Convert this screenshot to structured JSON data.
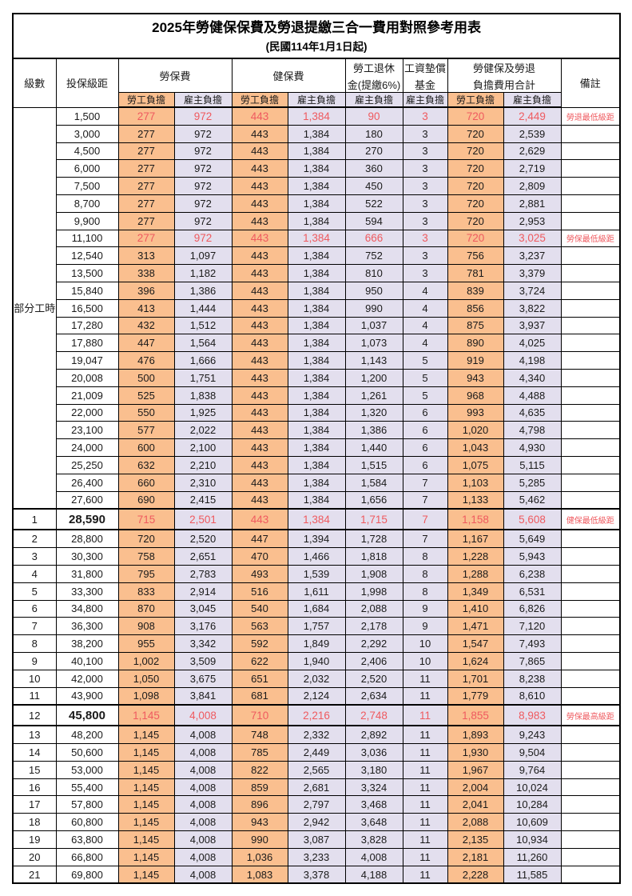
{
  "page": {
    "title": "2025年勞健保保費及勞退提繳三合一費用對照參考用表",
    "subtitle": "(民國114年1月1日起)"
  },
  "colors": {
    "employee_bg": "#fabf8f",
    "employer_bg": "#e3dfee",
    "highlight_red": "#ef5a5f"
  },
  "header": {
    "level": "級數",
    "bracket": "投保級距",
    "labor_fee": "勞保費",
    "health_fee": "健保費",
    "pension_line1": "勞工退休",
    "pension_line2": "金(提繳6%)",
    "wage_fund_line1": "工資墊償",
    "wage_fund_line2": "基金",
    "total_line1": "勞健保及勞退",
    "total_line2": "負擔費用合計",
    "remark": "備註",
    "employee_share": "勞工負擔",
    "employer_share": "雇主負擔"
  },
  "part_time_label": "部分工時",
  "part_time_row_span": 23,
  "rows": [
    {
      "level": "",
      "bracket": "1,500",
      "values": [
        "277",
        "972",
        "443",
        "1,384",
        "90",
        "3",
        "720",
        "2,449"
      ],
      "remark": "勞退最低級距",
      "red": true
    },
    {
      "level": "",
      "bracket": "3,000",
      "values": [
        "277",
        "972",
        "443",
        "1,384",
        "180",
        "3",
        "720",
        "2,539"
      ],
      "remark": ""
    },
    {
      "level": "",
      "bracket": "4,500",
      "values": [
        "277",
        "972",
        "443",
        "1,384",
        "270",
        "3",
        "720",
        "2,629"
      ],
      "remark": ""
    },
    {
      "level": "",
      "bracket": "6,000",
      "values": [
        "277",
        "972",
        "443",
        "1,384",
        "360",
        "3",
        "720",
        "2,719"
      ],
      "remark": ""
    },
    {
      "level": "",
      "bracket": "7,500",
      "values": [
        "277",
        "972",
        "443",
        "1,384",
        "450",
        "3",
        "720",
        "2,809"
      ],
      "remark": ""
    },
    {
      "level": "",
      "bracket": "8,700",
      "values": [
        "277",
        "972",
        "443",
        "1,384",
        "522",
        "3",
        "720",
        "2,881"
      ],
      "remark": ""
    },
    {
      "level": "",
      "bracket": "9,900",
      "values": [
        "277",
        "972",
        "443",
        "1,384",
        "594",
        "3",
        "720",
        "2,953"
      ],
      "remark": ""
    },
    {
      "level": "",
      "bracket": "11,100",
      "values": [
        "277",
        "972",
        "443",
        "1,384",
        "666",
        "3",
        "720",
        "3,025"
      ],
      "remark": "勞保最低級距",
      "red": true
    },
    {
      "level": "",
      "bracket": "12,540",
      "values": [
        "313",
        "1,097",
        "443",
        "1,384",
        "752",
        "3",
        "756",
        "3,237"
      ],
      "remark": ""
    },
    {
      "level": "",
      "bracket": "13,500",
      "values": [
        "338",
        "1,182",
        "443",
        "1,384",
        "810",
        "3",
        "781",
        "3,379"
      ],
      "remark": ""
    },
    {
      "level": "",
      "bracket": "15,840",
      "values": [
        "396",
        "1,386",
        "443",
        "1,384",
        "950",
        "4",
        "839",
        "3,724"
      ],
      "remark": ""
    },
    {
      "level": "",
      "bracket": "16,500",
      "values": [
        "413",
        "1,444",
        "443",
        "1,384",
        "990",
        "4",
        "856",
        "3,822"
      ],
      "remark": ""
    },
    {
      "level": "",
      "bracket": "17,280",
      "values": [
        "432",
        "1,512",
        "443",
        "1,384",
        "1,037",
        "4",
        "875",
        "3,937"
      ],
      "remark": ""
    },
    {
      "level": "",
      "bracket": "17,880",
      "values": [
        "447",
        "1,564",
        "443",
        "1,384",
        "1,073",
        "4",
        "890",
        "4,025"
      ],
      "remark": ""
    },
    {
      "level": "",
      "bracket": "19,047",
      "values": [
        "476",
        "1,666",
        "443",
        "1,384",
        "1,143",
        "5",
        "919",
        "4,198"
      ],
      "remark": ""
    },
    {
      "level": "",
      "bracket": "20,008",
      "values": [
        "500",
        "1,751",
        "443",
        "1,384",
        "1,200",
        "5",
        "943",
        "4,340"
      ],
      "remark": ""
    },
    {
      "level": "",
      "bracket": "21,009",
      "values": [
        "525",
        "1,838",
        "443",
        "1,384",
        "1,261",
        "5",
        "968",
        "4,488"
      ],
      "remark": ""
    },
    {
      "level": "",
      "bracket": "22,000",
      "values": [
        "550",
        "1,925",
        "443",
        "1,384",
        "1,320",
        "6",
        "993",
        "4,635"
      ],
      "remark": ""
    },
    {
      "level": "",
      "bracket": "23,100",
      "values": [
        "577",
        "2,022",
        "443",
        "1,384",
        "1,386",
        "6",
        "1,020",
        "4,798"
      ],
      "remark": ""
    },
    {
      "level": "",
      "bracket": "24,000",
      "values": [
        "600",
        "2,100",
        "443",
        "1,384",
        "1,440",
        "6",
        "1,043",
        "4,930"
      ],
      "remark": ""
    },
    {
      "level": "",
      "bracket": "25,250",
      "values": [
        "632",
        "2,210",
        "443",
        "1,384",
        "1,515",
        "6",
        "1,075",
        "5,115"
      ],
      "remark": ""
    },
    {
      "level": "",
      "bracket": "26,400",
      "values": [
        "660",
        "2,310",
        "443",
        "1,384",
        "1,584",
        "7",
        "1,103",
        "5,285"
      ],
      "remark": ""
    },
    {
      "level": "",
      "bracket": "27,600",
      "values": [
        "690",
        "2,415",
        "443",
        "1,384",
        "1,656",
        "7",
        "1,133",
        "5,462"
      ],
      "remark": ""
    },
    {
      "level": "1",
      "bracket": "28,590",
      "values": [
        "715",
        "2,501",
        "443",
        "1,384",
        "1,715",
        "7",
        "1,158",
        "5,608"
      ],
      "remark": "健保最低級距",
      "red": true,
      "thick": true,
      "bold": true
    },
    {
      "level": "2",
      "bracket": "28,800",
      "values": [
        "720",
        "2,520",
        "447",
        "1,394",
        "1,728",
        "7",
        "1,167",
        "5,649"
      ],
      "remark": ""
    },
    {
      "level": "3",
      "bracket": "30,300",
      "values": [
        "758",
        "2,651",
        "470",
        "1,466",
        "1,818",
        "8",
        "1,228",
        "5,943"
      ],
      "remark": ""
    },
    {
      "level": "4",
      "bracket": "31,800",
      "values": [
        "795",
        "2,783",
        "493",
        "1,539",
        "1,908",
        "8",
        "1,288",
        "6,238"
      ],
      "remark": ""
    },
    {
      "level": "5",
      "bracket": "33,300",
      "values": [
        "833",
        "2,914",
        "516",
        "1,611",
        "1,998",
        "8",
        "1,349",
        "6,531"
      ],
      "remark": ""
    },
    {
      "level": "6",
      "bracket": "34,800",
      "values": [
        "870",
        "3,045",
        "540",
        "1,684",
        "2,088",
        "9",
        "1,410",
        "6,826"
      ],
      "remark": ""
    },
    {
      "level": "7",
      "bracket": "36,300",
      "values": [
        "908",
        "3,176",
        "563",
        "1,757",
        "2,178",
        "9",
        "1,471",
        "7,120"
      ],
      "remark": ""
    },
    {
      "level": "8",
      "bracket": "38,200",
      "values": [
        "955",
        "3,342",
        "592",
        "1,849",
        "2,292",
        "10",
        "1,547",
        "7,493"
      ],
      "remark": ""
    },
    {
      "level": "9",
      "bracket": "40,100",
      "values": [
        "1,002",
        "3,509",
        "622",
        "1,940",
        "2,406",
        "10",
        "1,624",
        "7,865"
      ],
      "remark": ""
    },
    {
      "level": "10",
      "bracket": "42,000",
      "values": [
        "1,050",
        "3,675",
        "651",
        "2,032",
        "2,520",
        "11",
        "1,701",
        "8,238"
      ],
      "remark": ""
    },
    {
      "level": "11",
      "bracket": "43,900",
      "values": [
        "1,098",
        "3,841",
        "681",
        "2,124",
        "2,634",
        "11",
        "1,779",
        "8,610"
      ],
      "remark": ""
    },
    {
      "level": "12",
      "bracket": "45,800",
      "values": [
        "1,145",
        "4,008",
        "710",
        "2,216",
        "2,748",
        "11",
        "1,855",
        "8,983"
      ],
      "remark": "勞保最高級距",
      "red": true,
      "thick": true,
      "bold": true
    },
    {
      "level": "13",
      "bracket": "48,200",
      "values": [
        "1,145",
        "4,008",
        "748",
        "2,332",
        "2,892",
        "11",
        "1,893",
        "9,243"
      ],
      "remark": ""
    },
    {
      "level": "14",
      "bracket": "50,600",
      "values": [
        "1,145",
        "4,008",
        "785",
        "2,449",
        "3,036",
        "11",
        "1,930",
        "9,504"
      ],
      "remark": ""
    },
    {
      "level": "15",
      "bracket": "53,000",
      "values": [
        "1,145",
        "4,008",
        "822",
        "2,565",
        "3,180",
        "11",
        "1,967",
        "9,764"
      ],
      "remark": ""
    },
    {
      "level": "16",
      "bracket": "55,400",
      "values": [
        "1,145",
        "4,008",
        "859",
        "2,681",
        "3,324",
        "11",
        "2,004",
        "10,024"
      ],
      "remark": ""
    },
    {
      "level": "17",
      "bracket": "57,800",
      "values": [
        "1,145",
        "4,008",
        "896",
        "2,797",
        "3,468",
        "11",
        "2,041",
        "10,284"
      ],
      "remark": ""
    },
    {
      "level": "18",
      "bracket": "60,800",
      "values": [
        "1,145",
        "4,008",
        "943",
        "2,942",
        "3,648",
        "11",
        "2,088",
        "10,609"
      ],
      "remark": ""
    },
    {
      "level": "19",
      "bracket": "63,800",
      "values": [
        "1,145",
        "4,008",
        "990",
        "3,087",
        "3,828",
        "11",
        "2,135",
        "10,934"
      ],
      "remark": ""
    },
    {
      "level": "20",
      "bracket": "66,800",
      "values": [
        "1,145",
        "4,008",
        "1,036",
        "3,233",
        "4,008",
        "11",
        "2,181",
        "11,260"
      ],
      "remark": ""
    },
    {
      "level": "21",
      "bracket": "69,800",
      "values": [
        "1,145",
        "4,008",
        "1,083",
        "3,378",
        "4,188",
        "11",
        "2,228",
        "11,585"
      ],
      "remark": ""
    }
  ]
}
